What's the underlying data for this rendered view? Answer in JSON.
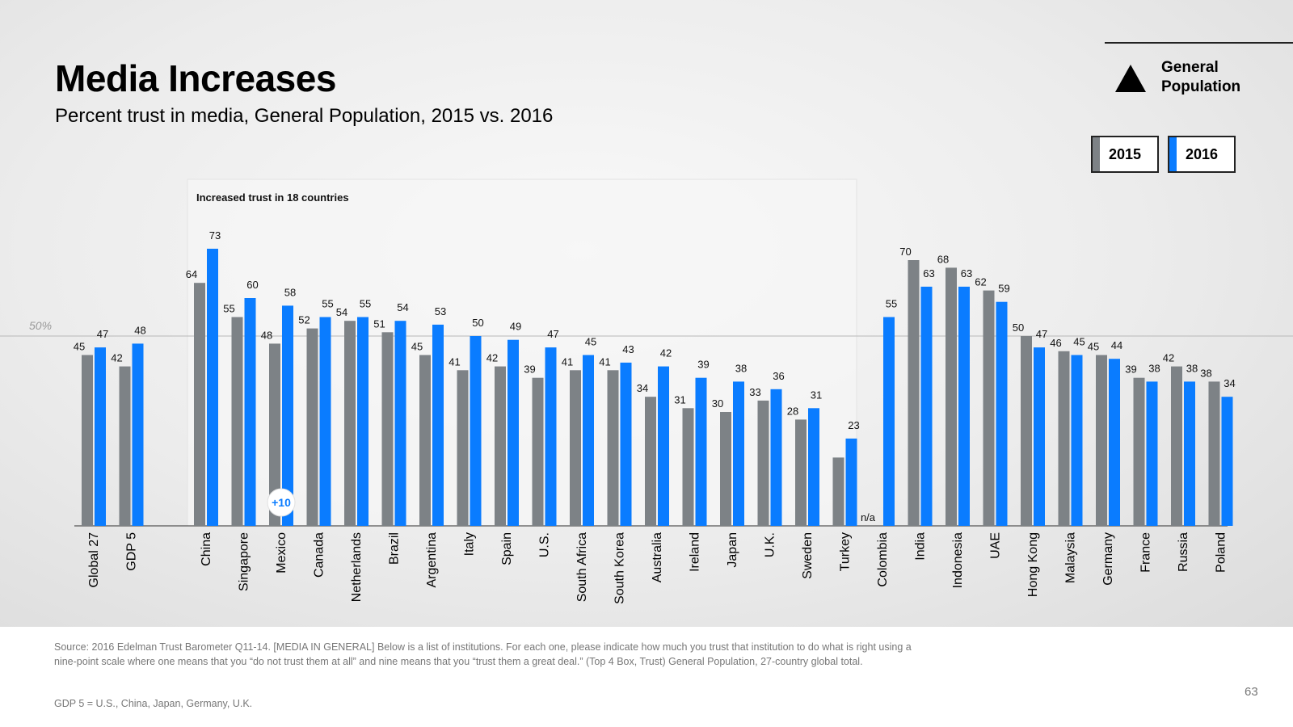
{
  "title": "Media Increases",
  "subtitle": "Percent trust in media, General Population, 2015 vs. 2016",
  "legend": {
    "group_label_line1": "General",
    "group_label_line2": "Population",
    "series_2015": "2015",
    "series_2016": "2016"
  },
  "colors": {
    "series_2015": "#7d8286",
    "series_2016": "#0a7cff"
  },
  "chart_data": {
    "type": "bar",
    "reference_line": {
      "value": 50,
      "label": "50%"
    },
    "highlight_box_label": "Increased trust in 18 countries",
    "callout": {
      "category": "Mexico",
      "label": "+10"
    },
    "ylim": [
      0,
      80
    ],
    "categories": [
      "Global 27",
      "GDP 5",
      "China",
      "Singapore",
      "Mexico",
      "Canada",
      "Netherlands",
      "Brazil",
      "Argentina",
      "Italy",
      "Spain",
      "U.S.",
      "South Africa",
      "South Korea",
      "Australia",
      "Ireland",
      "Japan",
      "U.K.",
      "Sweden",
      "Turkey",
      "Colombia",
      "India",
      "Indonesia",
      "UAE",
      "Hong Kong",
      "Malaysia",
      "Germany",
      "France",
      "Russia",
      "Poland"
    ],
    "series": [
      {
        "name": "2015",
        "values": [
          45,
          42,
          64,
          55,
          48,
          52,
          54,
          51,
          45,
          41,
          42,
          39,
          41,
          41,
          34,
          31,
          30,
          33,
          28,
          18,
          null,
          70,
          68,
          62,
          50,
          46,
          45,
          39,
          42,
          38
        ]
      },
      {
        "name": "2016",
        "values": [
          47,
          48,
          73,
          60,
          58,
          55,
          55,
          54,
          53,
          50,
          49,
          47,
          45,
          43,
          42,
          39,
          38,
          36,
          31,
          23,
          55,
          63,
          63,
          59,
          47,
          45,
          44,
          38,
          38,
          34
        ]
      }
    ],
    "value_labels_2015": [
      "45",
      "42",
      "64",
      "55",
      "48",
      "52",
      "54",
      "51",
      "45",
      "41",
      "42",
      "39",
      "41",
      "41",
      "34",
      "31",
      "30",
      "33",
      "28",
      "",
      "n/a",
      "70",
      "68",
      "62",
      "50",
      "46",
      "45",
      "39",
      "42",
      "38"
    ],
    "value_labels_2016": [
      "47",
      "48",
      "73",
      "60",
      "58",
      "55",
      "55",
      "54",
      "53",
      "50",
      "49",
      "47",
      "45",
      "43",
      "42",
      "39",
      "38",
      "36",
      "31",
      "23",
      "55",
      "63",
      "63",
      "59",
      "47",
      "45",
      "44",
      "38",
      "38",
      "34"
    ]
  },
  "footer": {
    "source": "Source: 2016 Edelman Trust Barometer Q11-14. [MEDIA IN GENERAL] Below is a list of institutions. For each one, please indicate how much you trust that institution to do what is right using a nine-point scale where one means that you “do not trust them at all” and nine means that you “trust them a great deal.” (Top 4 Box, Trust) General Population, 27-country global total.",
    "gdp_note": "GDP 5 = U.S., China, Japan, Germany, U.K.",
    "page_number": "63"
  }
}
